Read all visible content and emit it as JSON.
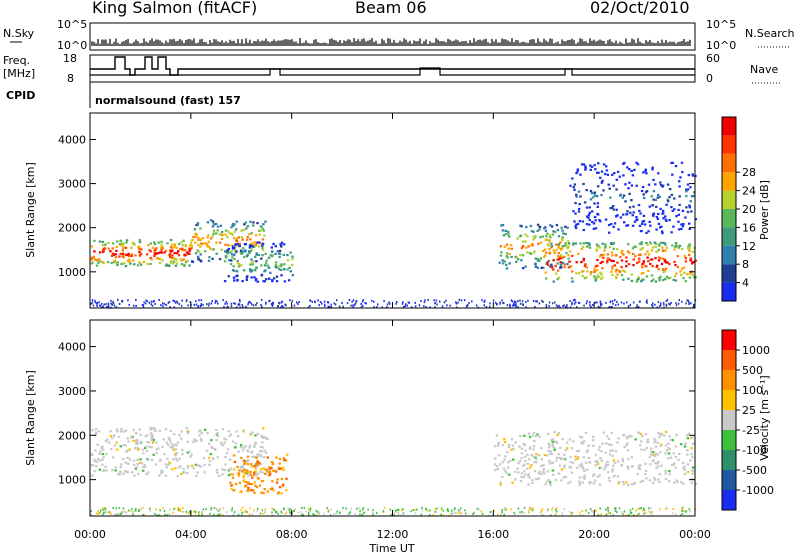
{
  "header": {
    "station": "King Salmon (fitACF)",
    "beam": "Beam 06",
    "date": "02/Oct/2010"
  },
  "top_panels": {
    "nsky_label": "N.Sky",
    "nsearch_label": "N.Search",
    "nsky_ticks": [
      "10^5",
      "10^0"
    ],
    "nsearch_ticks": [
      "10^5",
      "10^0"
    ],
    "freq_label_1": "Freq.",
    "freq_label_2": "[MHz]",
    "freq_ticks": [
      "18",
      "8"
    ],
    "nave_label": "Nave",
    "nave_ticks": [
      "60",
      "0"
    ],
    "cpid_label": "CPID",
    "cpid_value": "normalsound (fast) 157"
  },
  "chart_data": [
    {
      "type": "heatmap",
      "name": "power",
      "ylabel": "Slant Range [km]",
      "ylim": [
        180,
        4600
      ],
      "yticks": [
        "1000",
        "2000",
        "3000",
        "4000"
      ],
      "colorbar": {
        "label": "Power [dB]",
        "ticks": [
          "4",
          "8",
          "12",
          "16",
          "20",
          "24",
          "28"
        ],
        "colors": [
          "#1a2cf0",
          "#1f3f95",
          "#2f7fb0",
          "#3f9a7a",
          "#58b85a",
          "#b8d030",
          "#ffa500",
          "#ff7000",
          "#ff3300",
          "#ee0000"
        ]
      },
      "regions": [
        {
          "t": [
            0.0,
            4.0
          ],
          "range": [
            1150,
            1750
          ],
          "level": "high"
        },
        {
          "t": [
            4.0,
            7.0
          ],
          "range": [
            1250,
            2200
          ],
          "level": "medium-high"
        },
        {
          "t": [
            5.3,
            8.0
          ],
          "range": [
            800,
            1700
          ],
          "level": "medium"
        },
        {
          "t": [
            16.2,
            19.0
          ],
          "range": [
            1100,
            2100
          ],
          "level": "medium-high"
        },
        {
          "t": [
            18.0,
            24.0
          ],
          "range": [
            800,
            1700
          ],
          "level": "high"
        },
        {
          "t": [
            19.0,
            24.0
          ],
          "range": [
            1900,
            3500
          ],
          "level": "low"
        }
      ]
    },
    {
      "type": "heatmap",
      "name": "velocity",
      "ylabel": "Slant Range [km]",
      "ylim": [
        180,
        4600
      ],
      "yticks": [
        "1000",
        "2000",
        "3000",
        "4000"
      ],
      "xlabel": "Time UT",
      "xticks": [
        "00:00",
        "04:00",
        "08:00",
        "12:00",
        "16:00",
        "20:00",
        "00:00"
      ],
      "colorbar": {
        "label": "Velocity [m s⁻¹]",
        "ticks": [
          "1000",
          "500",
          "100",
          "25",
          "-25",
          "-100",
          "-500",
          "-1000"
        ],
        "colors": [
          "#1a2cf0",
          "#1f5aa0",
          "#2f8f6a",
          "#3fbf3f",
          "#c9c9c9",
          "#ffc000",
          "#ff9000",
          "#ff5a00",
          "#ff0000"
        ]
      },
      "regions": [
        {
          "t": [
            0.0,
            7.0
          ],
          "range": [
            1100,
            2200
          ],
          "velocity": "-25 to 25"
        },
        {
          "t": [
            5.5,
            7.8
          ],
          "range": [
            700,
            1600
          ],
          "velocity": "-500 to -100"
        },
        {
          "t": [
            16.0,
            24.0
          ],
          "range": [
            900,
            2100
          ],
          "velocity": "-25 to 25"
        }
      ]
    }
  ]
}
